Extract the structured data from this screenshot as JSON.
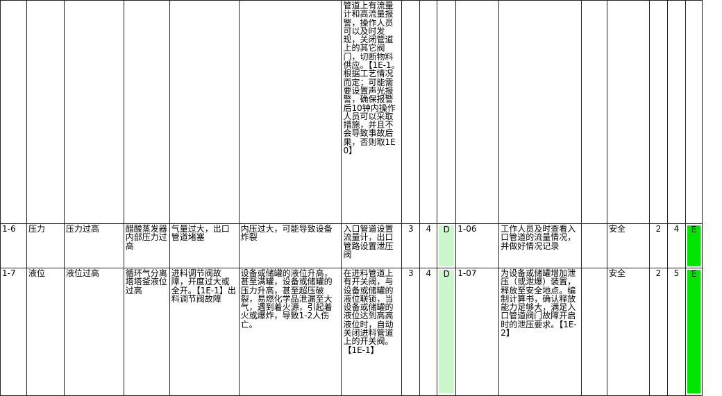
{
  "rows": [
    {
      "id": "",
      "param": "",
      "deviation": "",
      "cause_location": "",
      "cause": "",
      "consequence": "",
      "safeguard": "管道上有流量计和高流量报警，操作人员可以及时发现，关闭管道上的其它阀门，切断物料供应。【1E-1。根据工艺情况而定；可能需要设置声光报警，确保报警后10钟内操作人员可以采取措施，并且不会导致事故后果，否则取1E0】",
      "s": "",
      "l": "",
      "risk": "",
      "ref": "",
      "recommendation": "",
      "blank": "",
      "category": "",
      "s2": "",
      "l2": "",
      "risk2": ""
    },
    {
      "id": "1-6",
      "param": "压力",
      "deviation": "压力过高",
      "cause_location": "醋酸蒸发器内部压力过高",
      "cause": "气量过大，出口管道堵塞",
      "consequence": "内压过大，可能导致设备炸裂",
      "safeguard": "入口管道设置流量计，出口管路设置泄压阀",
      "s": "3",
      "l": "4",
      "risk": "D",
      "ref": "1-06",
      "recommendation": "工作人员及时查看入口管道的流量情况，并做好情况记录",
      "blank": "",
      "category": "安全",
      "s2": "2",
      "l2": "4",
      "risk2": "E"
    },
    {
      "id": "1-7",
      "param": "液位",
      "deviation": "液位过高",
      "cause_location": "循环气分离塔塔釜液位过高",
      "cause": "进料调节阀故障，开度过大或全开。【1E-1】出料调节阀故障",
      "consequence": "设备或储罐的液位升高，甚至满罐，设备或储罐的压力升高，甚至超压破裂，易燃化学品泄漏至大气，遇到着火源，引起着火或爆炸，导致1-2人伤亡。",
      "safeguard": "在进料管道上有开关阀，与设备或储罐的液位联锁，当设备或储罐的液位达到高高液位时，自动关闭进料管道上的开关阀。【1E-1】",
      "s": "3",
      "l": "4",
      "risk": "D",
      "ref": "1-07",
      "recommendation": "为设备或储罐增加泄压（或泄爆）装置，释放至安全地点。编制计算书，确认释放能力足够大，满足入口管道阀门故障开启时的泄压要求。【1E-2】",
      "blank": "",
      "category": "安全",
      "s2": "2",
      "l2": "5",
      "risk2": "E"
    }
  ],
  "colors": {
    "risk_d_fill": "#ccf7cc",
    "risk_e_fill": "#00e600",
    "grid": "#222222"
  }
}
